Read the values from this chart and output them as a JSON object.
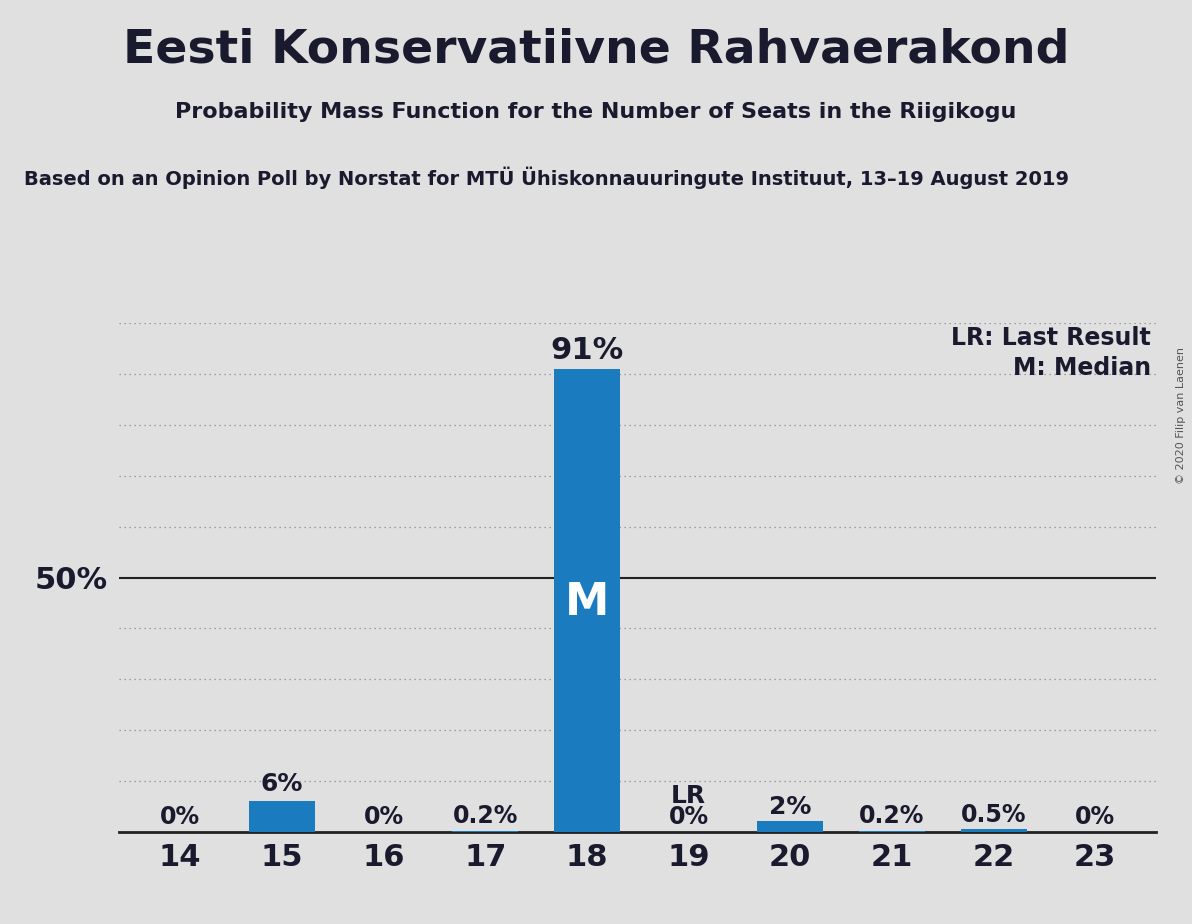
{
  "title": "Eesti Konservatiivne Rahvaerakond",
  "subtitle": "Probability Mass Function for the Number of Seats in the Riigikogu",
  "source_line": "Based on an Opinion Poll by Norstat for MTÜ Ühiskonnauuringute Instituut, 13–19 August 2019",
  "copyright": "© 2020 Filip van Laenen",
  "categories": [
    14,
    15,
    16,
    17,
    18,
    19,
    20,
    21,
    22,
    23
  ],
  "values": [
    0,
    6,
    0,
    0.2,
    91,
    0,
    2,
    0.2,
    0.5,
    0
  ],
  "bar_color": "#1b7bbf",
  "background_color": "#e0e0e0",
  "median_seat": 18,
  "last_result_seat": 19,
  "ylim": [
    0,
    100
  ],
  "yticks": [
    0,
    10,
    20,
    30,
    40,
    50,
    60,
    70,
    80,
    90,
    100
  ],
  "fifty_pct_line": 50,
  "legend_lr": "LR: Last Result",
  "legend_m": "M: Median",
  "bar_labels": [
    "0%",
    "6%",
    "0%",
    "0.2%",
    "91%",
    "0%",
    "2%",
    "0.2%",
    "0.5%",
    "0%"
  ],
  "grid_color": "#888888",
  "label_fontsize_large": 22,
  "label_fontsize_small": 18,
  "tick_fontsize": 22
}
